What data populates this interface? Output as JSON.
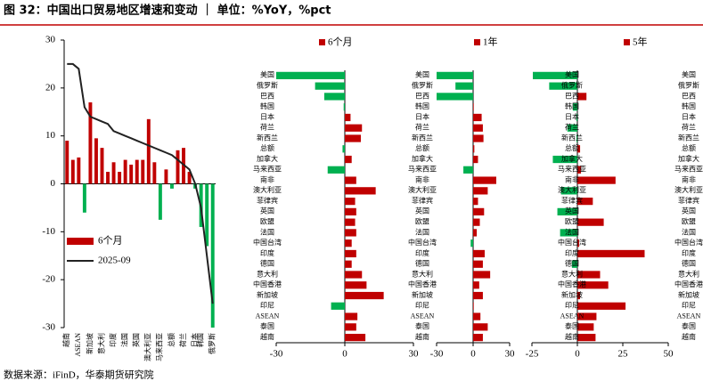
{
  "title": "图 32：中国出口贸易地区增速和变动 ｜ 单位：%YoY，%pct",
  "source": "数据来源：iFinD，华泰期货研究院",
  "chart_data": [
    {
      "type": "bar_line",
      "categories": [
        "越南",
        null,
        "ASEAN",
        null,
        "新加坡",
        null,
        "意大利",
        null,
        "印度",
        null,
        "法国",
        null,
        "英国",
        null,
        "澳大利亚",
        null,
        "马来西亚",
        null,
        "总额",
        null,
        "荷兰",
        null,
        "日本",
        "韩国",
        null,
        "俄罗斯"
      ],
      "series": [
        {
          "name": "6个月",
          "type": "bar",
          "color": "#c00000",
          "negative_color": "#00b050",
          "values": [
            9,
            5,
            5.5,
            -6,
            17,
            9.5,
            7.5,
            2.5,
            4.5,
            2.5,
            5,
            4,
            5,
            5,
            13.5,
            4.5,
            -7.5,
            3,
            -1,
            7,
            7.5,
            2.5,
            -1,
            -9,
            -13,
            -30
          ]
        },
        {
          "name": "2025-09",
          "type": "line",
          "color": "#222222",
          "values": [
            25,
            25,
            24,
            16,
            14,
            13.5,
            13,
            12.5,
            11,
            10.5,
            10,
            9.5,
            9,
            8.5,
            8,
            7.5,
            7,
            6.5,
            6,
            5,
            4,
            3,
            0,
            -5,
            -15,
            -25
          ]
        }
      ],
      "ylim": [
        -30,
        30
      ],
      "yticks": [
        -30,
        -20,
        -10,
        0,
        10,
        20,
        30
      ]
    },
    {
      "type": "barh",
      "categories": [
        "美国",
        "俄罗斯",
        "巴西",
        "韩国",
        "日本",
        "荷兰",
        "新西兰",
        "总额",
        "加拿大",
        "马来西亚",
        "南非",
        "澳大利亚",
        "菲律宾",
        "英国",
        "欧盟",
        "法国",
        "中国台湾",
        "印度",
        "德国",
        "意大利",
        "中国香港",
        "新加坡",
        "印尼",
        "ASEAN",
        "泰国",
        "越南"
      ],
      "series": [
        {
          "name": "6个月",
          "color": "#c00000",
          "negative_color": "#00b050",
          "values": [
            -30,
            -13,
            -9,
            -0.5,
            2.5,
            7.5,
            7,
            -1,
            3,
            -7.5,
            5,
            13.5,
            4.5,
            5,
            4.5,
            5,
            3,
            5,
            3,
            7.5,
            9.5,
            17,
            -6,
            5.5,
            5,
            9
          ]
        }
      ],
      "xlim": [
        -30,
        30
      ],
      "xticks": [
        -30,
        0,
        30
      ]
    },
    {
      "type": "barh",
      "categories": [
        "美国",
        "俄罗斯",
        "巴西",
        "韩国",
        "日本",
        "荷兰",
        "新西兰",
        "总额",
        "加拿大",
        "马来西亚",
        "南非",
        "澳大利亚",
        "菲律宾",
        "英国",
        "欧盟",
        "法国",
        "中国台湾",
        "印度",
        "德国",
        "意大利",
        "中国香港",
        "新加坡",
        "印尼",
        "ASEAN",
        "泰国",
        "越南"
      ],
      "series": [
        {
          "name": "1年",
          "color": "#c00000",
          "negative_color": "#00b050",
          "values": [
            -30,
            -14.5,
            -30,
            0.5,
            7,
            8,
            8.5,
            1,
            4,
            -8,
            19,
            12,
            4,
            9,
            5.5,
            3,
            -2,
            9.5,
            8,
            14,
            5,
            8,
            0.5,
            6,
            12,
            8
          ]
        }
      ],
      "xlim": [
        -30,
        30
      ],
      "xticks": [
        -30,
        0,
        30
      ]
    },
    {
      "type": "barh",
      "categories": [
        "美国",
        "俄罗斯",
        "巴西",
        "韩国",
        "日本",
        "荷兰",
        "新西兰",
        "总额",
        "加拿大",
        "马来西亚",
        "南非",
        "澳大利亚",
        "菲律宾",
        "英国",
        "欧盟",
        "法国",
        "中国台湾",
        "印度",
        "德国",
        "意大利",
        "中国香港",
        "新加坡",
        "印尼",
        "ASEAN",
        "泰国",
        "越南"
      ],
      "series": [
        {
          "name": "5年",
          "color": "#c00000",
          "negative_color": "#00b050",
          "values": [
            -24.5,
            -15.5,
            5,
            -2.5,
            -0.5,
            -5.5,
            -0.5,
            1.5,
            -13.5,
            2,
            21,
            -9,
            8.5,
            -11,
            14.5,
            -9.5,
            1,
            37,
            -3,
            12.5,
            17,
            1.5,
            26.5,
            10.5,
            9,
            10
          ]
        }
      ],
      "xlim": [
        -25,
        50
      ],
      "xticks": [
        -25,
        0,
        25,
        50
      ]
    }
  ]
}
